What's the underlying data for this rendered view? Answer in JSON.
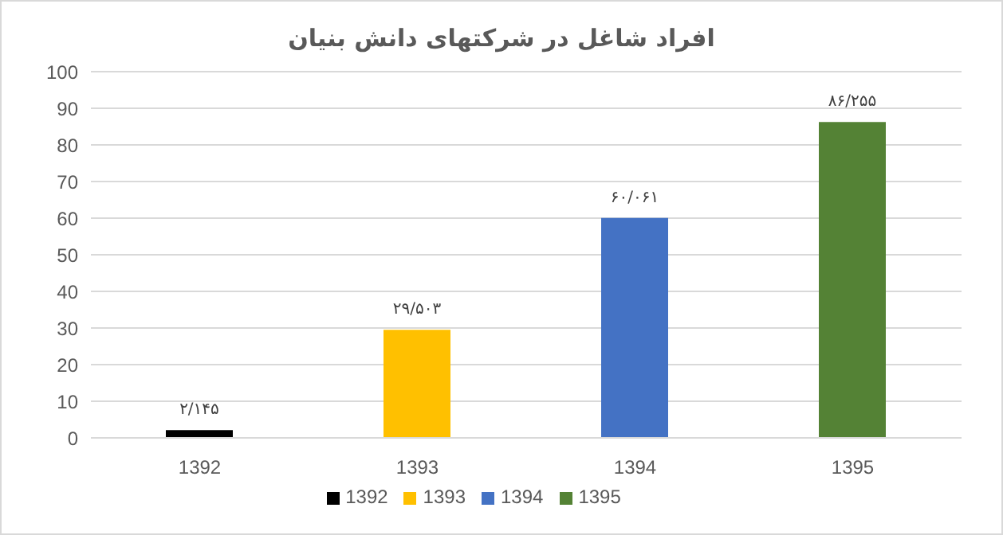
{
  "chart_data": {
    "type": "bar",
    "title": "افراد شاغل در شرکتهای دانش بنیان",
    "categories": [
      "1392",
      "1393",
      "1394",
      "1395"
    ],
    "stacked": true,
    "series": [
      {
        "name": "1392",
        "color": "#000000",
        "values": [
          2.145,
          null,
          null,
          null
        ],
        "value_labels": [
          "۲/۱۴۵",
          null,
          null,
          null
        ]
      },
      {
        "name": "1393",
        "color": "#ffc000",
        "values": [
          null,
          29.503,
          null,
          null
        ],
        "value_labels": [
          null,
          "۲۹/۵۰۳",
          null,
          null
        ]
      },
      {
        "name": "1394",
        "color": "#4472c4",
        "values": [
          null,
          null,
          60.061,
          null
        ],
        "value_labels": [
          null,
          null,
          "۶۰/۰۶۱",
          null
        ]
      },
      {
        "name": "1395",
        "color": "#548235",
        "values": [
          null,
          null,
          null,
          86.255
        ],
        "value_labels": [
          null,
          null,
          null,
          "۸۶/۲۵۵"
        ]
      }
    ],
    "ylim": [
      0,
      100
    ],
    "yticks": [
      0,
      10,
      20,
      30,
      40,
      50,
      60,
      70,
      80,
      90,
      100
    ],
    "grid": "y",
    "legend": "bottom"
  }
}
